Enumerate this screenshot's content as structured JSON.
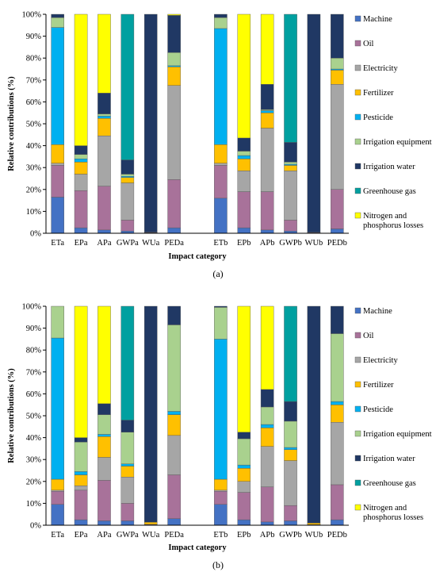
{
  "legend_colors": {
    "Machine": "#4472C4",
    "Oil": "#A8729A",
    "Electricity": "#A6A6A6",
    "Fertilizer": "#FFC000",
    "Pesticide": "#00B0F0",
    "Irrigation equipment": "#A9D18E",
    "Irrigation water": "#203864",
    "Greenhouse gas": "#00A0A0",
    "Nitrogen and phosphorus losses": "#FFFF00"
  },
  "chart_data": [
    {
      "type": "bar",
      "stacked": true,
      "panel_label": "(a)",
      "xlabel": "Impact category",
      "ylabel": "Relative contributions (%)",
      "ylim": [
        0,
        100
      ],
      "yticks": [
        "0%",
        "10%",
        "20%",
        "30%",
        "40%",
        "50%",
        "60%",
        "70%",
        "80%",
        "90%",
        "100%"
      ],
      "legend_position": "right",
      "categories": [
        "ETa",
        "EPa",
        "APa",
        "GWPa",
        "WUa",
        "PEDa",
        "",
        "ETb",
        "EPb",
        "APb",
        "GWPb",
        "WUb",
        "PEDb"
      ],
      "series": [
        {
          "name": "Machine",
          "values": [
            16.5,
            2.5,
            1.5,
            1,
            0.3,
            2.5,
            0,
            16,
            2.5,
            1.5,
            1,
            0.2,
            2
          ]
        },
        {
          "name": "Oil",
          "values": [
            14.5,
            17,
            20,
            5,
            0.2,
            22,
            0,
            15,
            16.5,
            17.5,
            5,
            0.2,
            18
          ]
        },
        {
          "name": "Electricity",
          "values": [
            1,
            7.5,
            23,
            17,
            0,
            43,
            0,
            1,
            9.5,
            29,
            22.5,
            0,
            48
          ]
        },
        {
          "name": "Fertilizer",
          "values": [
            8.5,
            5.5,
            8,
            2.5,
            0,
            8.5,
            0,
            8.5,
            5.5,
            7,
            2.5,
            0,
            6.5
          ]
        },
        {
          "name": "Pesticide",
          "values": [
            53.5,
            1.5,
            1,
            0.5,
            0,
            0.5,
            0,
            53,
            1.5,
            1,
            0.5,
            0,
            0.5
          ]
        },
        {
          "name": "Irrigation equipment",
          "values": [
            4.5,
            2,
            1,
            1,
            0,
            6,
            0,
            5,
            2,
            0.5,
            1,
            0,
            5
          ]
        },
        {
          "name": "Irrigation water",
          "values": [
            1.5,
            4,
            9.5,
            6.5,
            99.5,
            17,
            0,
            1.5,
            6,
            11.5,
            9,
            99.6,
            20
          ]
        },
        {
          "name": "Greenhouse gas",
          "values": [
            0,
            0,
            0,
            66.5,
            0,
            0,
            0,
            0,
            0,
            0,
            58.5,
            0,
            0
          ]
        },
        {
          "name": "Nitrogen and phosphorus losses",
          "values": [
            0,
            60,
            36,
            0,
            0,
            0.5,
            0,
            0,
            56.5,
            32,
            0,
            0,
            0
          ]
        }
      ]
    },
    {
      "type": "bar",
      "stacked": true,
      "panel_label": "(b)",
      "xlabel": "Impact category",
      "ylabel": "Relative contributions (%)",
      "ylim": [
        0,
        100
      ],
      "yticks": [
        "0%",
        "10%",
        "20%",
        "30%",
        "40%",
        "50%",
        "60%",
        "70%",
        "80%",
        "90%",
        "100%"
      ],
      "legend_position": "right",
      "categories": [
        "ETa",
        "EPa",
        "APa",
        "GWPa",
        "WUa",
        "PEDa",
        "",
        "ETb",
        "EPb",
        "APb",
        "GWPb",
        "WUb",
        "PEDb"
      ],
      "series": [
        {
          "name": "Machine",
          "values": [
            9.5,
            2.5,
            2,
            2,
            0.2,
            3,
            0,
            9.5,
            2.5,
            1.5,
            2,
            0.2,
            2.5
          ]
        },
        {
          "name": "Oil",
          "values": [
            6,
            13.5,
            18.5,
            8,
            0.2,
            20,
            0,
            6,
            12.5,
            16,
            7,
            0.1,
            16
          ]
        },
        {
          "name": "Electricity",
          "values": [
            0.5,
            2,
            10.5,
            12,
            0,
            18,
            0,
            0.5,
            5,
            18.5,
            20.5,
            0,
            28.5
          ]
        },
        {
          "name": "Fertilizer",
          "values": [
            5,
            5,
            9.5,
            5,
            1,
            9.5,
            0,
            5,
            6,
            8.5,
            5,
            0.7,
            8
          ]
        },
        {
          "name": "Pesticide",
          "values": [
            64.5,
            1.5,
            1,
            1,
            0,
            1.5,
            0,
            64,
            1.5,
            1.5,
            1,
            0,
            1.5
          ]
        },
        {
          "name": "Irrigation equipment",
          "values": [
            14.5,
            13.5,
            9,
            14.5,
            0,
            39.5,
            0,
            14.5,
            12,
            8,
            12,
            0,
            31
          ]
        },
        {
          "name": "Irrigation water",
          "values": [
            0,
            2,
            5,
            5.5,
            98.6,
            8.5,
            0,
            0.5,
            3,
            8,
            9,
            99,
            12.5
          ]
        },
        {
          "name": "Greenhouse gas",
          "values": [
            0,
            0,
            0,
            52,
            0,
            0,
            0,
            0,
            0,
            0,
            43.5,
            0,
            0
          ]
        },
        {
          "name": "Nitrogen and phosphorus losses",
          "values": [
            0,
            60,
            44.5,
            0,
            0,
            0,
            0,
            0,
            57.5,
            38,
            0,
            0,
            0
          ]
        }
      ]
    }
  ]
}
